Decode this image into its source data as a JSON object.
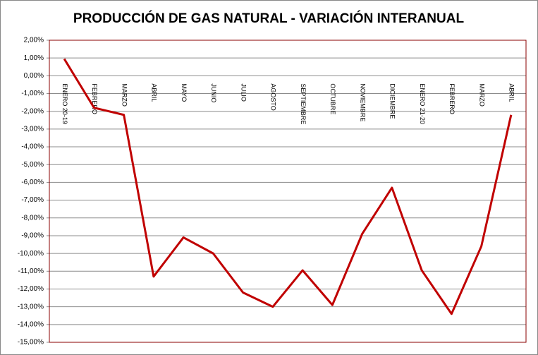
{
  "chart_data": {
    "type": "line",
    "title": "PRODUCCIÓN DE GAS NATURAL - VARIACIÓN INTERANUAL",
    "categories": [
      "ENERO 20-19",
      "FEBRERO",
      "MARZO",
      "ABRIL",
      "MAYO",
      "JUNIO",
      "JULIO",
      "AGOSTO",
      "SEPTIEMBRE",
      "OCTUBRE",
      "NOVIEMBRE",
      "DICIEMBRE",
      "ENERO 21-20",
      "FEBRERO",
      "MARZO",
      "ABRIL"
    ],
    "series": [
      {
        "color": "#c00000",
        "values": [
          0.95,
          -1.8,
          -2.2,
          -11.3,
          -9.1,
          -10.0,
          -12.2,
          -13.0,
          -10.95,
          -12.9,
          -8.9,
          -6.3,
          -10.95,
          -13.4,
          -9.6,
          -2.2
        ]
      }
    ],
    "ylim": [
      -15,
      2
    ],
    "yticks": [
      {
        "value": 2,
        "label": "2,00%"
      },
      {
        "value": 1,
        "label": "1,00%"
      },
      {
        "value": 0,
        "label": "0,00%"
      },
      {
        "value": -1,
        "label": "-1,00%"
      },
      {
        "value": -2,
        "label": "-2,00%"
      },
      {
        "value": -3,
        "label": "-3,00%"
      },
      {
        "value": -4,
        "label": "-4,00%"
      },
      {
        "value": -5,
        "label": "-5,00%"
      },
      {
        "value": -6,
        "label": "-6,00%"
      },
      {
        "value": -7,
        "label": "-7,00%"
      },
      {
        "value": -8,
        "label": "-8,00%"
      },
      {
        "value": -9,
        "label": "-9,00%"
      },
      {
        "value": -10,
        "label": "-10,00%"
      },
      {
        "value": -11,
        "label": "-11,00%"
      },
      {
        "value": -12,
        "label": "-12,00%"
      },
      {
        "value": -13,
        "label": "-13,00%"
      },
      {
        "value": -14,
        "label": "-14,00%"
      },
      {
        "value": -15,
        "label": "-15,00%"
      }
    ],
    "grid": true
  }
}
